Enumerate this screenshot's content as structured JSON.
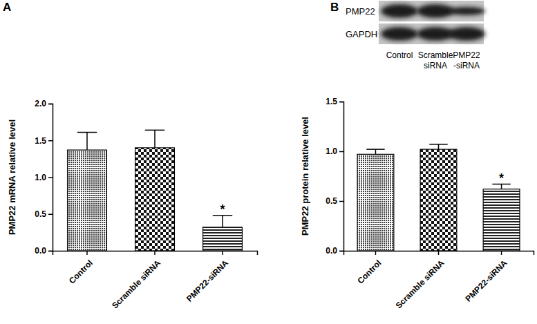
{
  "panel_labels": [
    "A",
    "B"
  ],
  "blot": {
    "rows": [
      "PMP22",
      "GAPDH"
    ],
    "lanes": [
      [
        "Control"
      ],
      [
        "Scramble",
        "siRNA"
      ],
      [
        "PMP22",
        "-siRNA"
      ]
    ]
  },
  "chart_data": [
    {
      "type": "bar",
      "y_label": "PMP22 mRNA relative level",
      "categories": [
        "Control",
        "Scramble siRNA",
        "PMP22-siRNA"
      ],
      "values": [
        1.37,
        1.4,
        0.32
      ],
      "errors": [
        0.24,
        0.24,
        0.16
      ],
      "value_annotations": [
        null,
        null,
        "*"
      ],
      "ylim": [
        0,
        2.0
      ],
      "yticks": [
        {
          "value": 0,
          "label": "0.0"
        },
        {
          "value": 0.5,
          "label": "0.5"
        },
        {
          "value": 1.0,
          "label": "1.0"
        },
        {
          "value": 1.5,
          "label": "1.5"
        },
        {
          "value": 2.0,
          "label": "2.0"
        }
      ]
    },
    {
      "type": "bar",
      "y_label": "PMP22 protein relative level",
      "categories": [
        "Control",
        "Scramble siRNA",
        "PMP22-siRNA"
      ],
      "values": [
        0.97,
        1.02,
        0.62
      ],
      "errors": [
        0.05,
        0.05,
        0.05
      ],
      "value_annotations": [
        null,
        null,
        "*"
      ],
      "ylim": [
        0,
        1.5
      ],
      "yticks": [
        {
          "value": 0,
          "label": "0.0"
        },
        {
          "value": 0.5,
          "label": "0.5"
        },
        {
          "value": 1.0,
          "label": "1.0"
        },
        {
          "value": 1.5,
          "label": "1.5"
        }
      ]
    }
  ]
}
